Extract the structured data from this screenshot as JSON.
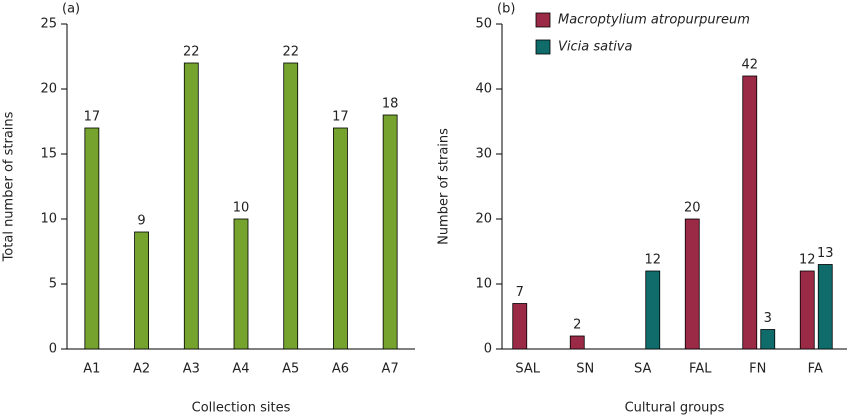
{
  "chart_data": [
    {
      "type": "bar",
      "panel": "(a)",
      "y_label": "Total number of strains",
      "x_label": "Collection sites",
      "categories": [
        "A1",
        "A2",
        "A3",
        "A4",
        "A5",
        "A6",
        "A7"
      ],
      "series": [
        {
          "name": null,
          "color": "#76a22e",
          "values": [
            17,
            9,
            22,
            10,
            22,
            17,
            18
          ]
        }
      ],
      "ylim": [
        0,
        25
      ],
      "yticks": [
        0,
        5,
        10,
        15,
        20,
        25
      ]
    },
    {
      "type": "bar",
      "panel": "(b)",
      "y_label": "Number of strains",
      "x_label": "Cultural groups",
      "categories": [
        "SAL",
        "SN",
        "SA",
        "FAL",
        "FN",
        "FA"
      ],
      "series": [
        {
          "name": "Macroptylium atropurpureum",
          "color": "#9b2a47",
          "values": [
            7,
            2,
            null,
            20,
            42,
            12
          ]
        },
        {
          "name": "Vicia sativa",
          "color": "#106b6b",
          "values": [
            null,
            null,
            12,
            null,
            3,
            13
          ]
        }
      ],
      "ylim": [
        0,
        50
      ],
      "yticks": [
        0,
        10,
        20,
        30,
        40,
        50
      ],
      "legend": "upper left"
    }
  ]
}
